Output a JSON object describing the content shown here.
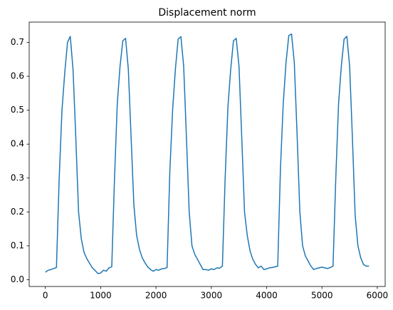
{
  "chart_data": {
    "type": "line",
    "title": "Displacement norm",
    "x": [
      0,
      50,
      100,
      150,
      200,
      250,
      300,
      350,
      400,
      450,
      500,
      550,
      600,
      650,
      700,
      750,
      800,
      850,
      900,
      950,
      1000,
      1050,
      1100,
      1150,
      1200,
      1250,
      1300,
      1350,
      1400,
      1450,
      1500,
      1550,
      1600,
      1650,
      1700,
      1750,
      1800,
      1850,
      1900,
      1950,
      2000,
      2050,
      2100,
      2150,
      2200,
      2250,
      2300,
      2350,
      2400,
      2450,
      2500,
      2550,
      2600,
      2650,
      2700,
      2750,
      2800,
      2850,
      2900,
      2950,
      3000,
      3050,
      3100,
      3150,
      3200,
      3250,
      3300,
      3350,
      3400,
      3450,
      3500,
      3550,
      3600,
      3650,
      3700,
      3750,
      3800,
      3850,
      3900,
      3950,
      4000,
      4050,
      4100,
      4150,
      4200,
      4250,
      4300,
      4350,
      4400,
      4450,
      4500,
      4550,
      4600,
      4650,
      4700,
      4750,
      4800,
      4850,
      4900,
      4950,
      5000,
      5050,
      5100,
      5150,
      5200,
      5250,
      5300,
      5350,
      5400,
      5450,
      5500,
      5550,
      5600,
      5650,
      5700,
      5750,
      5800,
      5850
    ],
    "series": [
      {
        "color": "#1f77b4",
        "values": [
          0.022,
          0.028,
          0.03,
          0.033,
          0.036,
          0.3,
          0.5,
          0.61,
          0.7,
          0.718,
          0.62,
          0.42,
          0.2,
          0.12,
          0.08,
          0.062,
          0.048,
          0.035,
          0.027,
          0.018,
          0.02,
          0.028,
          0.025,
          0.035,
          0.038,
          0.3,
          0.52,
          0.63,
          0.705,
          0.712,
          0.62,
          0.42,
          0.22,
          0.13,
          0.09,
          0.065,
          0.05,
          0.038,
          0.03,
          0.025,
          0.03,
          0.028,
          0.032,
          0.033,
          0.036,
          0.32,
          0.5,
          0.62,
          0.71,
          0.717,
          0.63,
          0.42,
          0.2,
          0.1,
          0.075,
          0.06,
          0.045,
          0.03,
          0.03,
          0.028,
          0.032,
          0.03,
          0.035,
          0.034,
          0.04,
          0.3,
          0.51,
          0.62,
          0.705,
          0.712,
          0.63,
          0.42,
          0.2,
          0.13,
          0.085,
          0.06,
          0.045,
          0.035,
          0.04,
          0.03,
          0.032,
          0.035,
          0.036,
          0.038,
          0.04,
          0.33,
          0.52,
          0.64,
          0.72,
          0.725,
          0.64,
          0.43,
          0.2,
          0.1,
          0.07,
          0.055,
          0.04,
          0.03,
          0.033,
          0.035,
          0.037,
          0.035,
          0.033,
          0.036,
          0.04,
          0.3,
          0.52,
          0.63,
          0.71,
          0.718,
          0.63,
          0.42,
          0.19,
          0.1,
          0.065,
          0.045,
          0.04,
          0.04
        ]
      }
    ],
    "xlim": [
      -292.5,
      6142.5
    ],
    "ylim": [
      -0.02,
      0.76
    ],
    "xticks": [
      0,
      1000,
      2000,
      3000,
      4000,
      5000,
      6000
    ],
    "yticks": [
      {
        "value": 0,
        "label": "0.0"
      },
      0.1,
      0.2,
      0.3,
      0.4,
      0.5,
      0.6,
      0.7
    ],
    "grid": false
  }
}
